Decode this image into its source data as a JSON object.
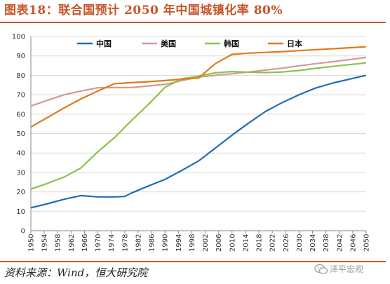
{
  "header": {
    "title": "图表18：联合国预计 2050 年中国城镇化率 80%"
  },
  "footer": {
    "source": "资料来源：Wind，恒大研究院",
    "watermark": "泽平宏观"
  },
  "chart_data": {
    "type": "line",
    "title": "图表18：联合国预计 2050 年中国城镇化率 80%",
    "xlabel": "",
    "ylabel": "",
    "ylim": [
      0,
      100
    ],
    "yticks": [
      0,
      10,
      20,
      30,
      40,
      50,
      60,
      70,
      80,
      90,
      100
    ],
    "xlim": [
      1950,
      2050
    ],
    "xticks": [
      1950,
      1954,
      1958,
      1962,
      1966,
      1970,
      1974,
      1978,
      1982,
      1986,
      1990,
      1994,
      1998,
      2002,
      2006,
      2010,
      2014,
      2018,
      2022,
      2026,
      2030,
      2034,
      2038,
      2042,
      2046,
      2050
    ],
    "grid": "horizontal",
    "legend": "top",
    "series": [
      {
        "name": "中国",
        "color": "#1f6fb5",
        "x": [
          1950,
          1955,
          1960,
          1965,
          1970,
          1975,
          1978,
          1980,
          1985,
          1990,
          1995,
          2000,
          2005,
          2010,
          2015,
          2020,
          2025,
          2030,
          2035,
          2040,
          2045,
          2050
        ],
        "y": [
          11.8,
          13.9,
          16.2,
          18.1,
          17.4,
          17.4,
          17.6,
          19.4,
          23.0,
          26.4,
          31.0,
          35.9,
          42.5,
          49.2,
          55.5,
          61.4,
          66.0,
          70.0,
          73.5,
          76.0,
          78.0,
          80.0
        ]
      },
      {
        "name": "美国",
        "color": "#d49a9a",
        "x": [
          1950,
          1955,
          1960,
          1965,
          1970,
          1975,
          1980,
          1985,
          1990,
          1995,
          2000,
          2005,
          2010,
          2015,
          2020,
          2025,
          2030,
          2035,
          2040,
          2045,
          2050
        ],
        "y": [
          64.2,
          67.2,
          70.0,
          71.9,
          73.6,
          73.7,
          73.7,
          74.5,
          75.3,
          77.3,
          79.1,
          80.0,
          80.8,
          81.7,
          82.7,
          83.7,
          84.9,
          86.0,
          87.0,
          88.1,
          89.2
        ]
      },
      {
        "name": "韩国",
        "color": "#8bc34a",
        "x": [
          1950,
          1955,
          1960,
          1965,
          1970,
          1975,
          1980,
          1985,
          1990,
          1995,
          2000,
          2005,
          2010,
          2015,
          2020,
          2025,
          2030,
          2035,
          2040,
          2045,
          2050
        ],
        "y": [
          21.4,
          24.4,
          27.7,
          32.4,
          40.7,
          48.0,
          56.7,
          64.9,
          73.8,
          78.2,
          79.6,
          81.3,
          81.9,
          81.6,
          81.4,
          81.7,
          82.5,
          83.6,
          84.6,
          85.5,
          86.4
        ]
      },
      {
        "name": "日本",
        "color": "#e07b1a",
        "x": [
          1950,
          1955,
          1960,
          1965,
          1970,
          1975,
          1980,
          1985,
          1990,
          1995,
          2000,
          2005,
          2010,
          2015,
          2020,
          2025,
          2030,
          2035,
          2040,
          2045,
          2050
        ],
        "y": [
          53.4,
          58.3,
          63.3,
          67.9,
          71.9,
          75.7,
          76.2,
          76.7,
          77.3,
          78.0,
          78.6,
          86.0,
          90.8,
          91.4,
          91.8,
          92.2,
          92.7,
          93.2,
          93.7,
          94.2,
          94.7
        ]
      }
    ]
  }
}
